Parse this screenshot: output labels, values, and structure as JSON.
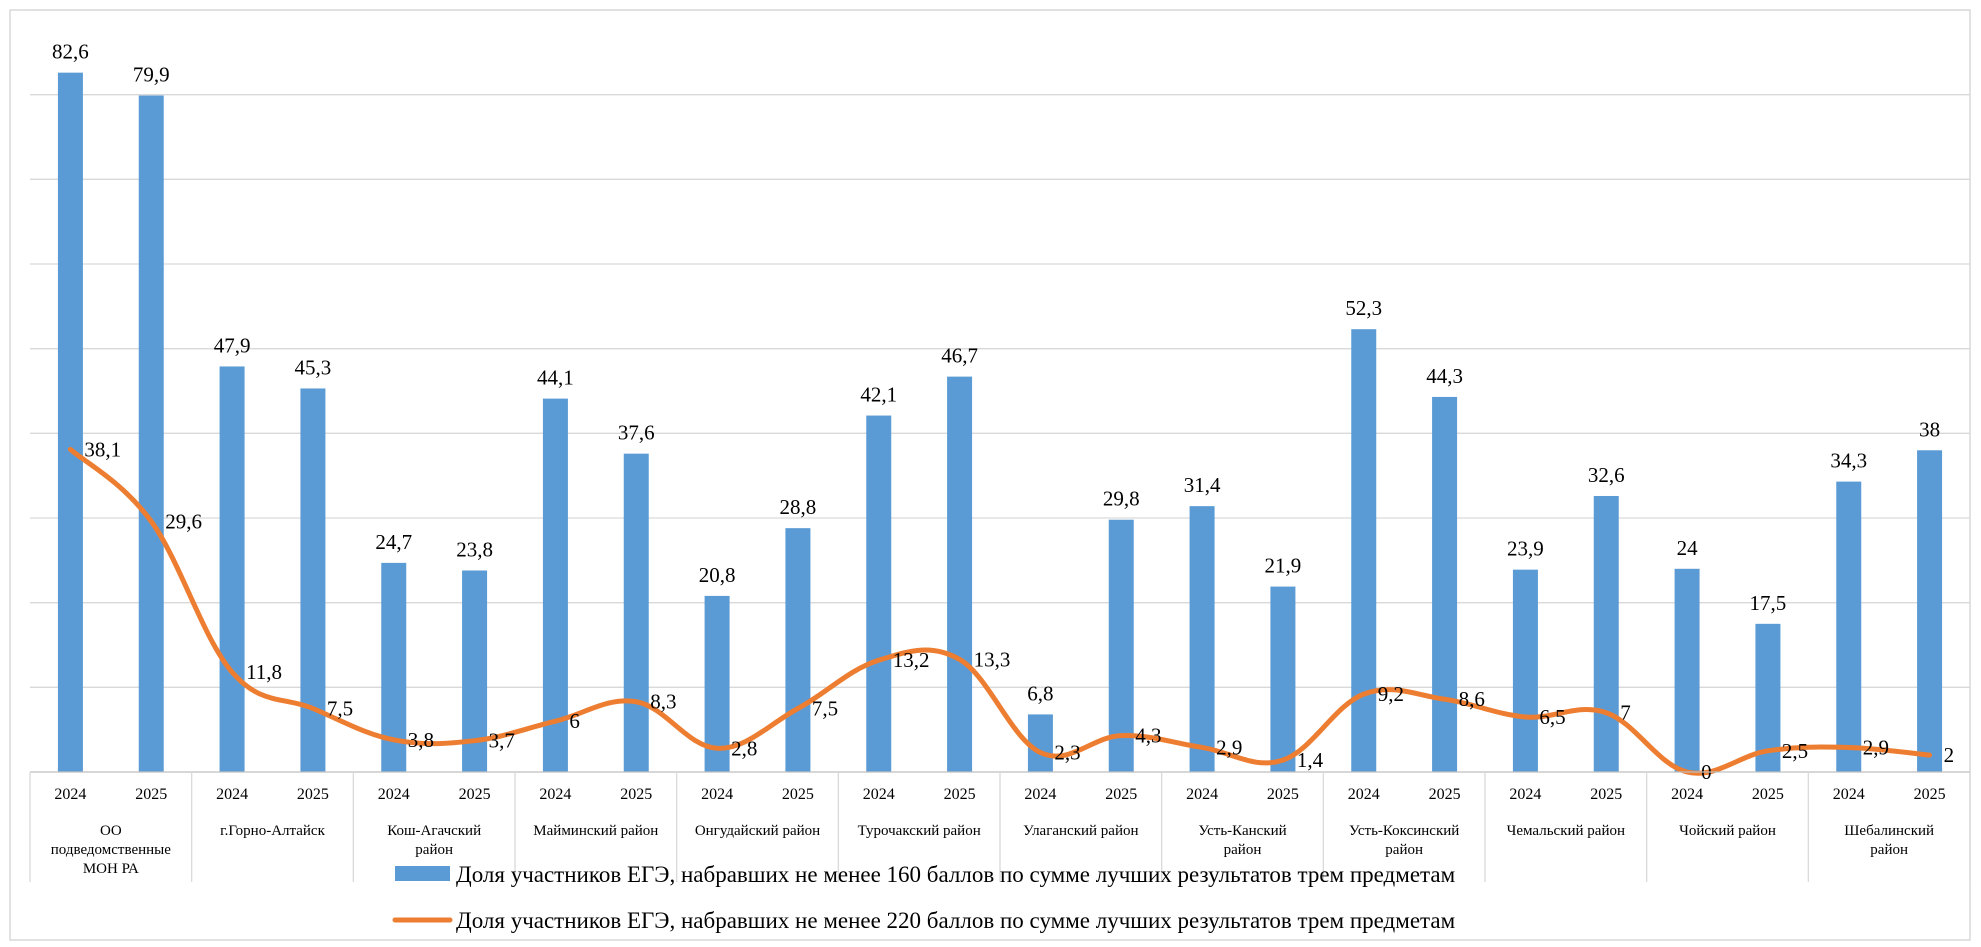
{
  "chart_data": {
    "type": "bar",
    "title": "",
    "xlabel": "",
    "ylabel": "",
    "ylim": [
      0,
      90
    ],
    "grid": true,
    "legend_position": "bottom",
    "groups": [
      "ОО подведомственные МОН РА",
      "г.Горно-Алтайск",
      "Кош-Агачский район",
      "Майминский район",
      "Онгудайский район",
      "Турочакский район",
      "Улаганский район",
      "Усть-Канский район",
      "Усть-Коксинский район",
      "Чемальский район",
      "Чойский район",
      "Шебалинский район"
    ],
    "group_lines": [
      [
        "ОО",
        "подведомственные",
        "МОН РА"
      ],
      [
        "г.Горно-Алтайск"
      ],
      [
        "Кош-Агачский",
        "район"
      ],
      [
        "Майминский район"
      ],
      [
        "Онгудайский район"
      ],
      [
        "Турочакский район"
      ],
      [
        "Улаганский район"
      ],
      [
        "Усть-Канский",
        "район"
      ],
      [
        "Усть-Коксинский",
        "район"
      ],
      [
        "Чемальский район"
      ],
      [
        "Чойский район"
      ],
      [
        "Шебалинский",
        "район"
      ]
    ],
    "years": [
      "2024",
      "2025"
    ],
    "series": [
      {
        "name": "Доля участников ЕГЭ, набравших не менее 160 баллов по сумме лучших результатов трем предметам",
        "kind": "bar",
        "color": "#5b9bd5",
        "values": [
          82.6,
          79.9,
          47.9,
          45.3,
          24.7,
          23.8,
          44.1,
          37.6,
          20.8,
          28.8,
          42.1,
          46.7,
          6.8,
          29.8,
          31.4,
          21.9,
          52.3,
          44.3,
          23.9,
          32.6,
          24,
          17.5,
          34.3,
          38
        ],
        "labels": [
          "82,6",
          "79,9",
          "47,9",
          "45,3",
          "24,7",
          "23,8",
          "44,1",
          "37,6",
          "20,8",
          "28,8",
          "42,1",
          "46,7",
          "6,8",
          "29,8",
          "31,4",
          "21,9",
          "52,3",
          "44,3",
          "23,9",
          "32,6",
          "24",
          "17,5",
          "34,3",
          "38"
        ]
      },
      {
        "name": "Доля участников ЕГЭ, набравших не менее 220 баллов по сумме лучших результатов трем предметам",
        "kind": "line",
        "color": "#ed7d31",
        "values": [
          38.1,
          29.6,
          11.8,
          7.5,
          3.8,
          3.7,
          6,
          8.3,
          2.8,
          7.5,
          13.2,
          13.3,
          2.3,
          4.3,
          2.9,
          1.4,
          9.2,
          8.6,
          6.5,
          7,
          0,
          2.5,
          2.9,
          2
        ],
        "labels": [
          "38,1",
          "29,6",
          "11,8",
          "7,5",
          "3,8",
          "3,7",
          "6",
          "8,3",
          "2,8",
          "7,5",
          "13,2",
          "13,3",
          "2,3",
          "4,3",
          "2,9",
          "1,4",
          "9,2",
          "8,6",
          "6,5",
          "7",
          "0",
          "2,5",
          "2,9",
          "2"
        ]
      }
    ]
  }
}
